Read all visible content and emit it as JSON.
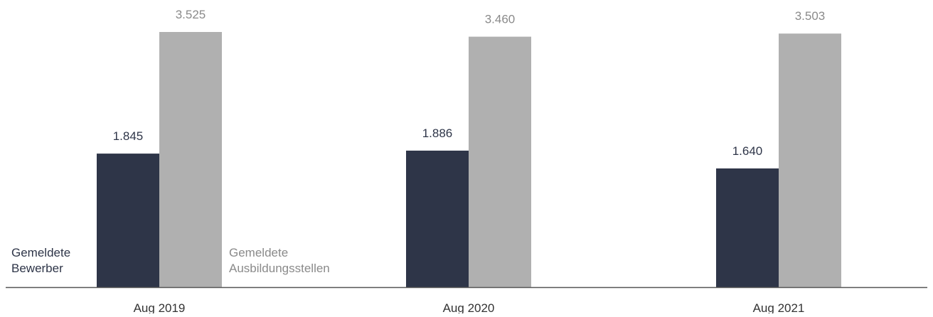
{
  "chart_data": {
    "type": "bar",
    "categories": [
      "Aug 2019",
      "Aug 2020",
      "Aug 2021"
    ],
    "series": [
      {
        "name": "Gemeldete Bewerber",
        "name_lines": [
          "Gemeldete",
          "Bewerber"
        ],
        "color": "#2e3548",
        "label_color": "#2e3548",
        "values": [
          1845,
          1886,
          1640
        ],
        "value_labels": [
          "1.845",
          "1.886",
          "1.640"
        ]
      },
      {
        "name": "Gemeldete Ausbildungsstellen",
        "name_lines": [
          "Gemeldete",
          "Ausbildungsstellen"
        ],
        "color": "#b0b0b0",
        "label_color": "#8a8a8a",
        "values": [
          3525,
          3460,
          3503
        ],
        "value_labels": [
          "3.525",
          "3.460",
          "3.503"
        ]
      }
    ],
    "ylim": [
      0,
      3525
    ],
    "grid": false,
    "legend_placement": "inline-bottom-left",
    "axis_color": "#555555",
    "category_label_color": "#333333"
  }
}
